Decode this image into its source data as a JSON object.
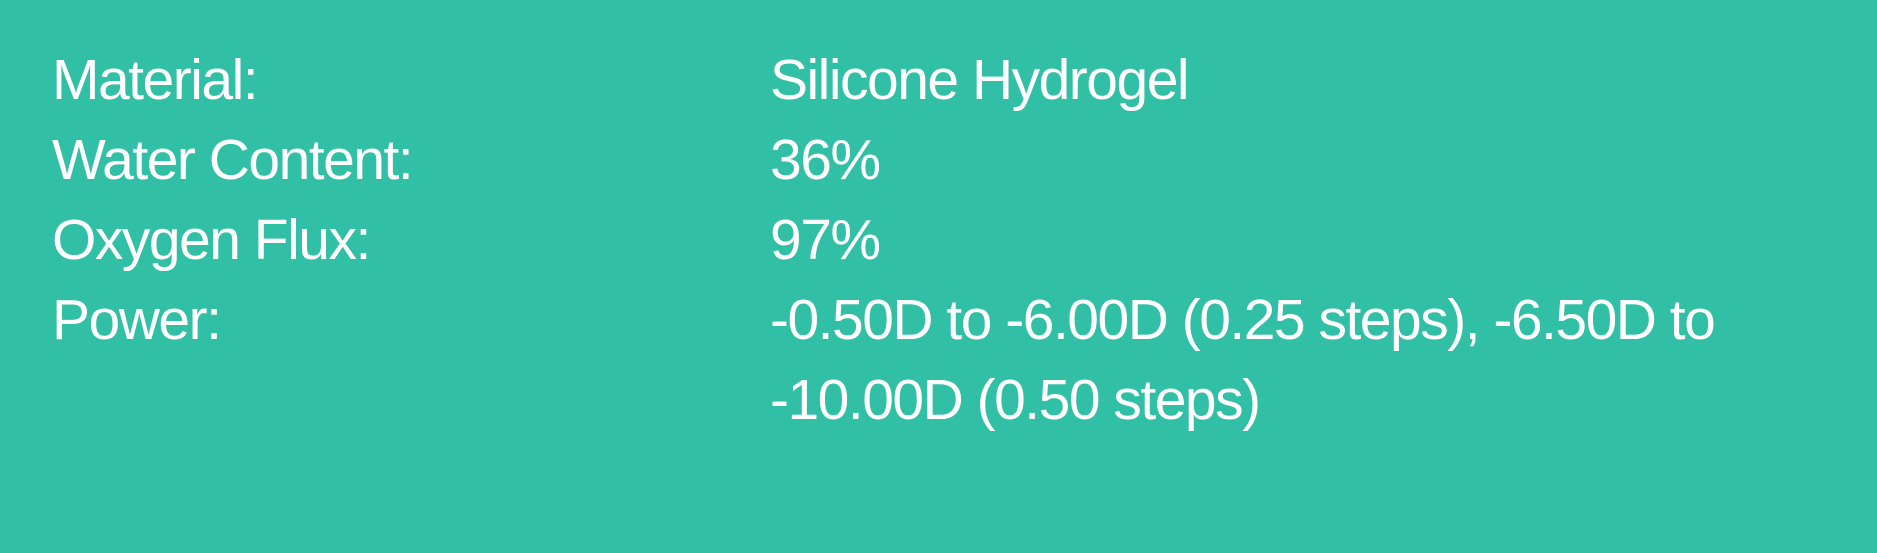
{
  "background_color": "#31bfa5",
  "specs": [
    {
      "label": "Material:",
      "value": "Silicone Hydrogel"
    },
    {
      "label": "Water Content:",
      "value": "36%"
    },
    {
      "label": "Oxygen Flux:",
      "value": "97%"
    },
    {
      "label": "Power:",
      "value": "-0.50D to -6.00D (0.25 steps), -6.50D to -10.00D (0.50 steps)"
    }
  ]
}
